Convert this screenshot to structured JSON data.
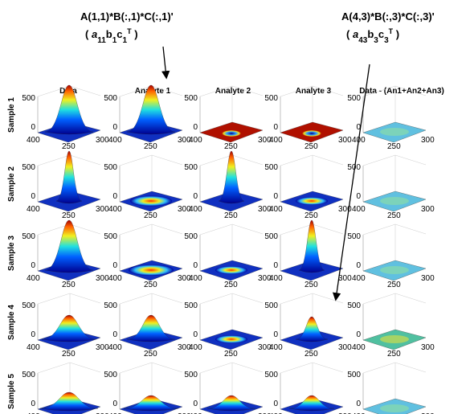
{
  "annotations": [
    {
      "line1": "A(1,1)*B(:,1)*C(:,1)'",
      "term": [
        "( ",
        "a",
        "11",
        "b",
        "1",
        "c",
        "1",
        "T",
        " )"
      ]
    },
    {
      "line1": "A(4,3)*B(:,3)*C(:,3)'",
      "term": [
        "( ",
        "a",
        "43",
        "b",
        "3",
        "c",
        "3",
        "T",
        " )"
      ]
    }
  ],
  "columns": [
    "Data",
    "Analyte 1",
    "Analyte 2",
    "Analyte 3",
    "Data - (An1+An2+An3)"
  ],
  "rows": [
    "Sample 1",
    "Sample 2",
    "Sample 3",
    "Sample 4",
    "Sample 5"
  ],
  "panel_ticks": {
    "z": [
      "500",
      "0"
    ],
    "x": [
      "400",
      "250"
    ],
    "y": "300"
  }
}
